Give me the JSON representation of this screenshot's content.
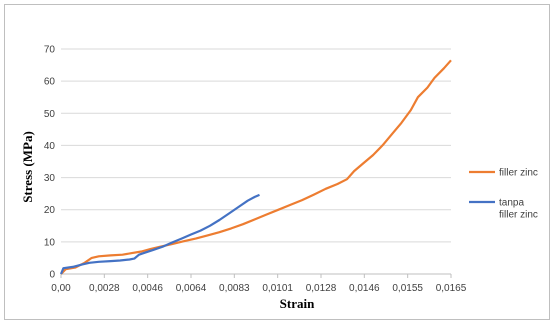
{
  "chart_data": {
    "type": "line",
    "xlabel": "Strain",
    "ylabel": "Stress (MPa)",
    "xlim": [
      0,
      0.0165
    ],
    "ylim": [
      0,
      70
    ],
    "x_ticks": [
      "0,00",
      "0,0028",
      "0,0046",
      "0,0064",
      "0,0083",
      "0,0101",
      "0,0128",
      "0,0146",
      "0,0155",
      "0,0165"
    ],
    "y_ticks": [
      0,
      10,
      20,
      30,
      40,
      50,
      60,
      70
    ],
    "grid": "horizontal",
    "legend_position": "right",
    "series": [
      {
        "name": "filler zinc",
        "color": "#ed7d31",
        "points": [
          [
            0,
            0
          ],
          [
            0.0002,
            1.5
          ],
          [
            0.0006,
            2
          ],
          [
            0.001,
            3.5
          ],
          [
            0.0013,
            5
          ],
          [
            0.0016,
            5.5
          ],
          [
            0.0021,
            5.8
          ],
          [
            0.0026,
            6
          ],
          [
            0.003,
            6.5
          ],
          [
            0.0034,
            7
          ],
          [
            0.0038,
            7.8
          ],
          [
            0.0042,
            8.5
          ],
          [
            0.0047,
            9.3
          ],
          [
            0.0052,
            10.2
          ],
          [
            0.0057,
            11
          ],
          [
            0.0062,
            12
          ],
          [
            0.0067,
            13
          ],
          [
            0.0072,
            14.2
          ],
          [
            0.0077,
            15.5
          ],
          [
            0.0082,
            17
          ],
          [
            0.0087,
            18.5
          ],
          [
            0.0092,
            20
          ],
          [
            0.0097,
            21.5
          ],
          [
            0.0102,
            23
          ],
          [
            0.0107,
            24.7
          ],
          [
            0.0112,
            26.5
          ],
          [
            0.0117,
            28
          ],
          [
            0.0121,
            29.5
          ],
          [
            0.0124,
            32
          ],
          [
            0.0128,
            34.5
          ],
          [
            0.0132,
            37
          ],
          [
            0.0136,
            40
          ],
          [
            0.014,
            43.5
          ],
          [
            0.0144,
            47
          ],
          [
            0.0148,
            51
          ],
          [
            0.0151,
            55
          ],
          [
            0.0155,
            58
          ],
          [
            0.0158,
            61
          ],
          [
            0.0162,
            64
          ],
          [
            0.0165,
            66.5
          ]
        ]
      },
      {
        "name": "tanpa filler zinc",
        "color": "#4472c4",
        "points": [
          [
            0,
            0
          ],
          [
            0.0001,
            1.8
          ],
          [
            0.0005,
            2.2
          ],
          [
            0.0009,
            3
          ],
          [
            0.0012,
            3.5
          ],
          [
            0.0016,
            3.8
          ],
          [
            0.0021,
            4.0
          ],
          [
            0.0025,
            4.2
          ],
          [
            0.0029,
            4.5
          ],
          [
            0.0031,
            4.8
          ],
          [
            0.0033,
            6.0
          ],
          [
            0.0035,
            6.5
          ],
          [
            0.0039,
            7.5
          ],
          [
            0.0043,
            8.5
          ],
          [
            0.0047,
            9.8
          ],
          [
            0.0051,
            11
          ],
          [
            0.0055,
            12.3
          ],
          [
            0.0059,
            13.5
          ],
          [
            0.0063,
            15
          ],
          [
            0.0067,
            16.8
          ],
          [
            0.0071,
            18.8
          ],
          [
            0.0075,
            20.8
          ],
          [
            0.0079,
            22.8
          ],
          [
            0.0082,
            24
          ],
          [
            0.0084,
            24.6
          ]
        ]
      }
    ]
  }
}
